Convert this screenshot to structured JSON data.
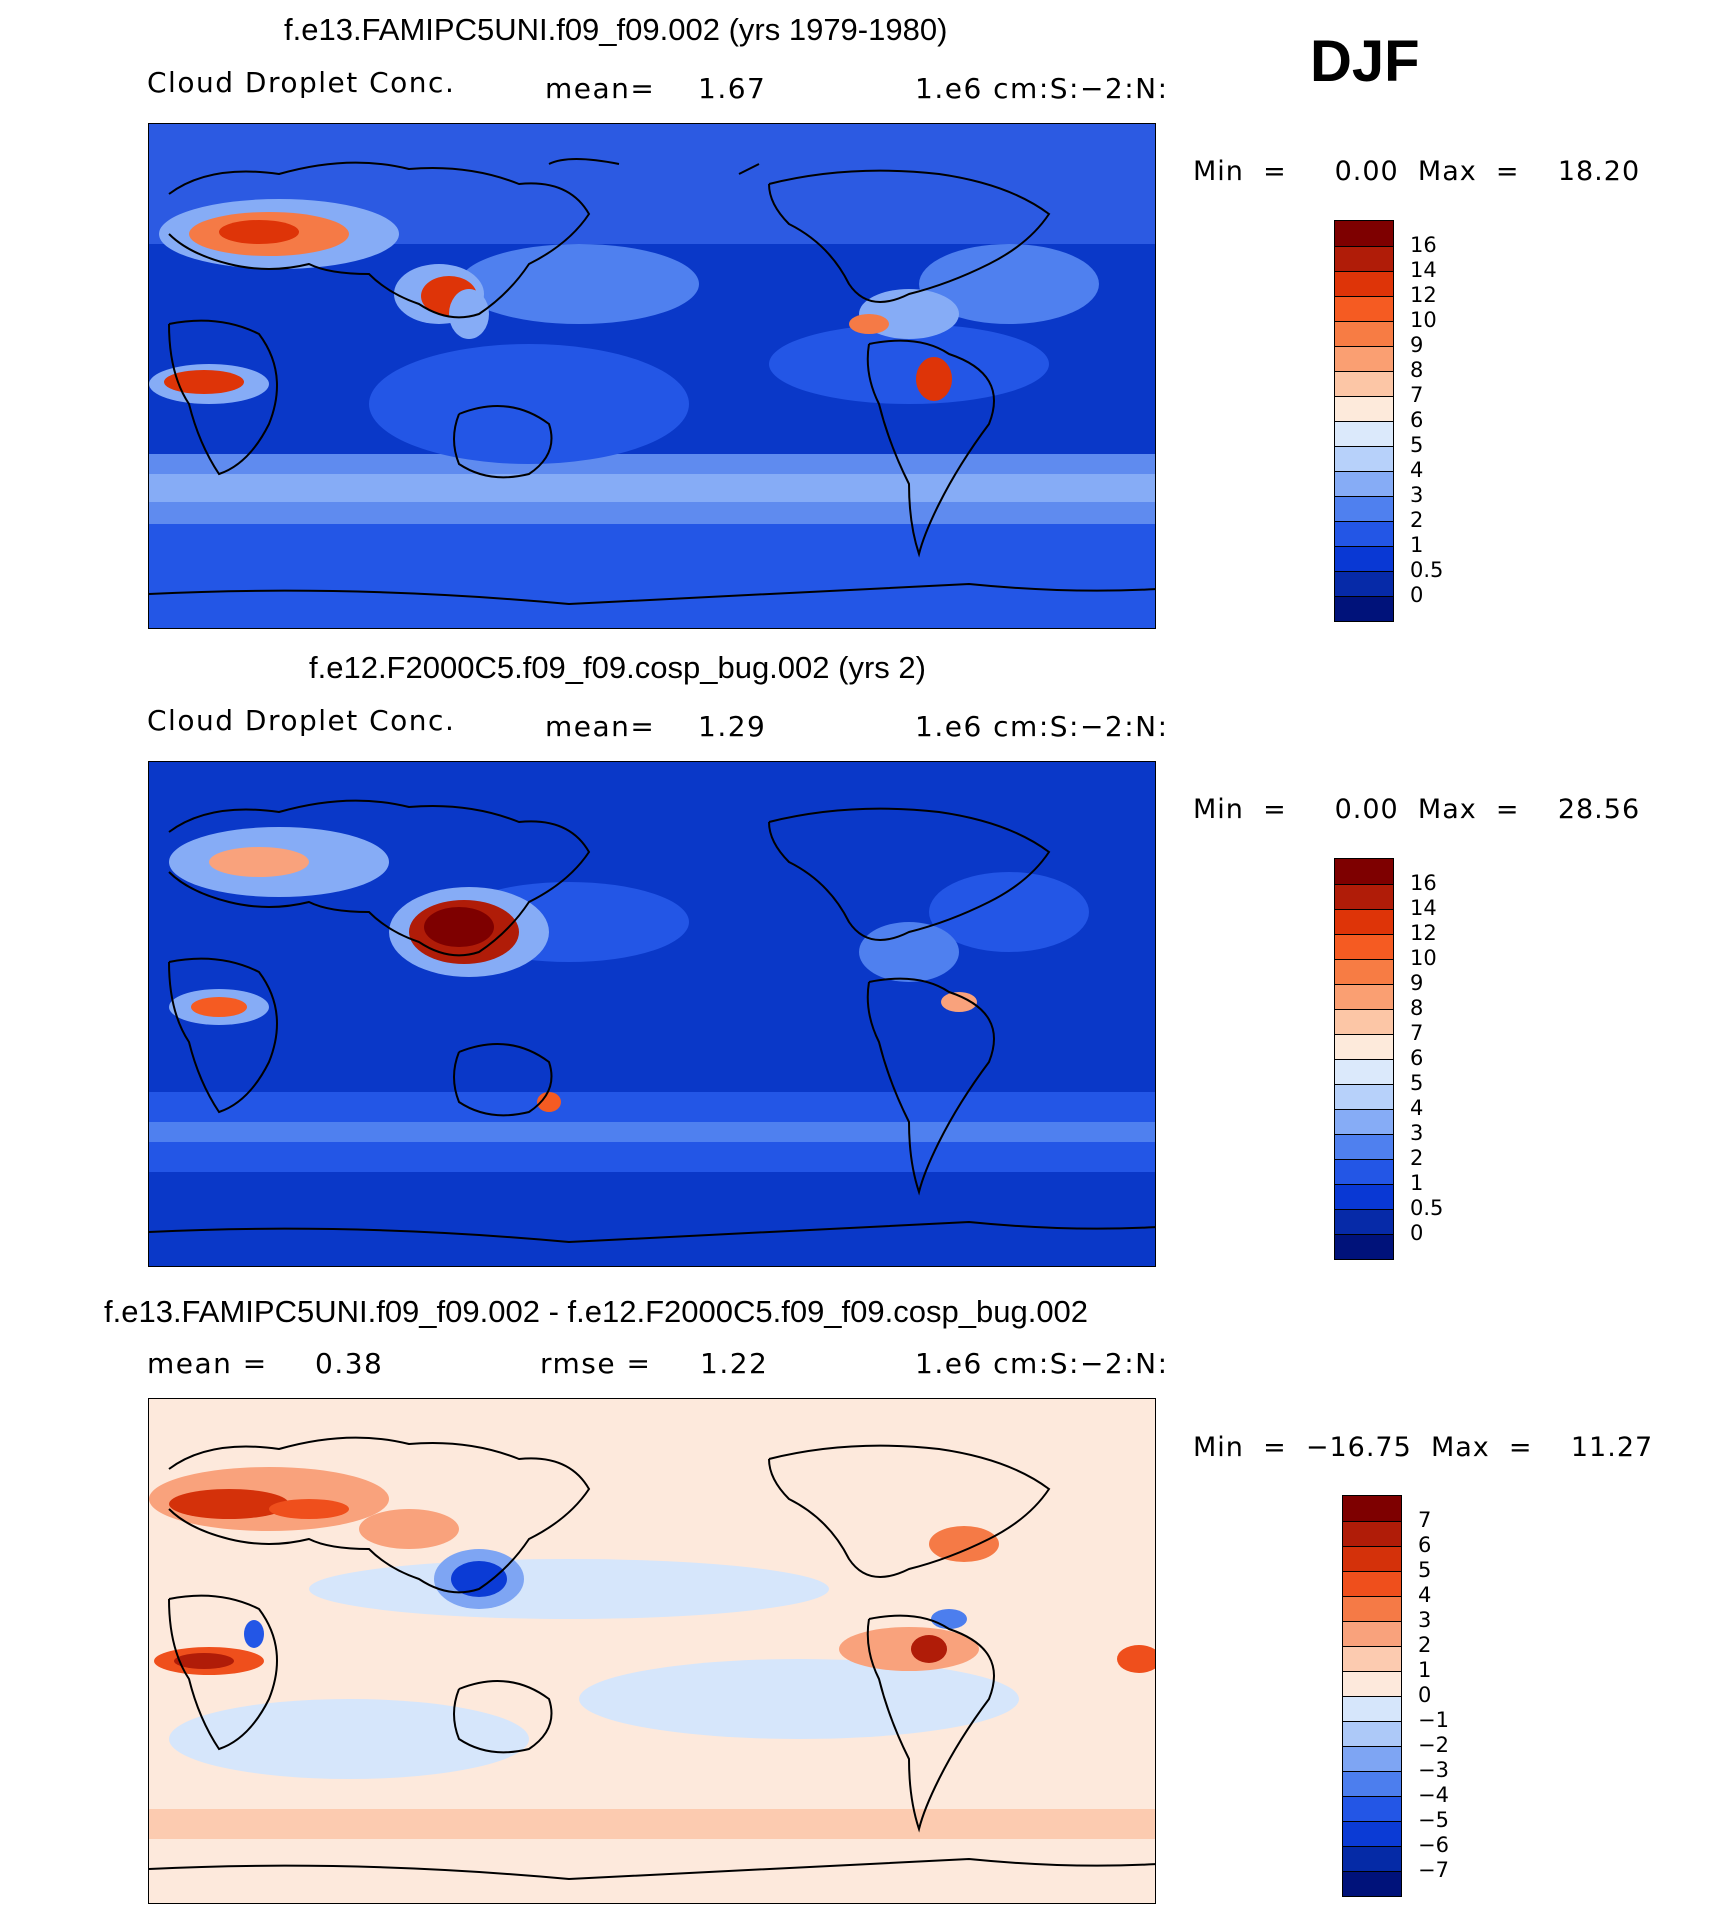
{
  "season": "DJF",
  "panels": [
    {
      "title": "f.e13.FAMIPC5UNI.f09_f09.002 (yrs 1979-1980)",
      "left_label": "Cloud  Droplet  Conc.",
      "stat_label": "mean=",
      "stat_value": "1.67",
      "units": "1.e6  cm:S:−2:N:",
      "minmax": "Min  =     0.00  Max  =    18.20",
      "colorbar_levels": [
        "16",
        "14",
        "12",
        "10",
        "9",
        "8",
        "7",
        "6",
        "5",
        "4",
        "3",
        "2",
        "1",
        "0.5",
        "0"
      ],
      "colorbar_colors": [
        "#7e0000",
        "#b01c08",
        "#de3408",
        "#f55b22",
        "#f77c44",
        "#fa9f72",
        "#fcc6a6",
        "#fdeadb",
        "#dbe9fb",
        "#b7d1fa",
        "#86acf6",
        "#4f80ef",
        "#2356e6",
        "#0938d4",
        "#062aa8",
        "#00127a"
      ]
    },
    {
      "title": "f.e12.F2000C5.f09_f09.cosp_bug.002 (yrs 2)",
      "left_label": "Cloud  Droplet  Conc.",
      "stat_label": "mean=",
      "stat_value": "1.29",
      "units": "1.e6  cm:S:−2:N:",
      "minmax": "Min  =     0.00  Max  =    28.56",
      "colorbar_levels": [
        "16",
        "14",
        "12",
        "10",
        "9",
        "8",
        "7",
        "6",
        "5",
        "4",
        "3",
        "2",
        "1",
        "0.5",
        "0"
      ],
      "colorbar_colors": [
        "#7e0000",
        "#b01c08",
        "#de3408",
        "#f55b22",
        "#f77c44",
        "#fa9f72",
        "#fcc6a6",
        "#fdeadb",
        "#dbe9fb",
        "#b7d1fa",
        "#86acf6",
        "#4f80ef",
        "#2356e6",
        "#0938d4",
        "#062aa8",
        "#00127a"
      ]
    },
    {
      "title": "f.e13.FAMIPC5UNI.f09_f09.002 - f.e12.F2000C5.f09_f09.cosp_bug.002",
      "left_label": "mean  =",
      "left_value": "0.38",
      "stat_label": "rmse  =",
      "stat_value": "1.22",
      "units": "1.e6  cm:S:−2:N:",
      "minmax": "Min  =  −16.75  Max  =    11.27",
      "colorbar_levels": [
        "7",
        "6",
        "5",
        "4",
        "3",
        "2",
        "1",
        "0",
        "−1",
        "−2",
        "−3",
        "−4",
        "−5",
        "−6",
        "−7"
      ],
      "colorbar_colors": [
        "#7e0000",
        "#b01c08",
        "#d4310a",
        "#ef4f1c",
        "#f57a46",
        "#f9a27c",
        "#fccbb0",
        "#fde9dc",
        "#d6e6fb",
        "#adc9f8",
        "#7ea5f3",
        "#4c7eee",
        "#2356e6",
        "#0b3bd5",
        "#052aa6",
        "#00127a"
      ]
    }
  ],
  "map_colors": {
    "ocean_low": "#0a38c8",
    "ocean_mid": "#2c5ae2",
    "ocean_high": "#5f8bef",
    "diff_base": "#fde9dc",
    "coast": "#000000"
  }
}
